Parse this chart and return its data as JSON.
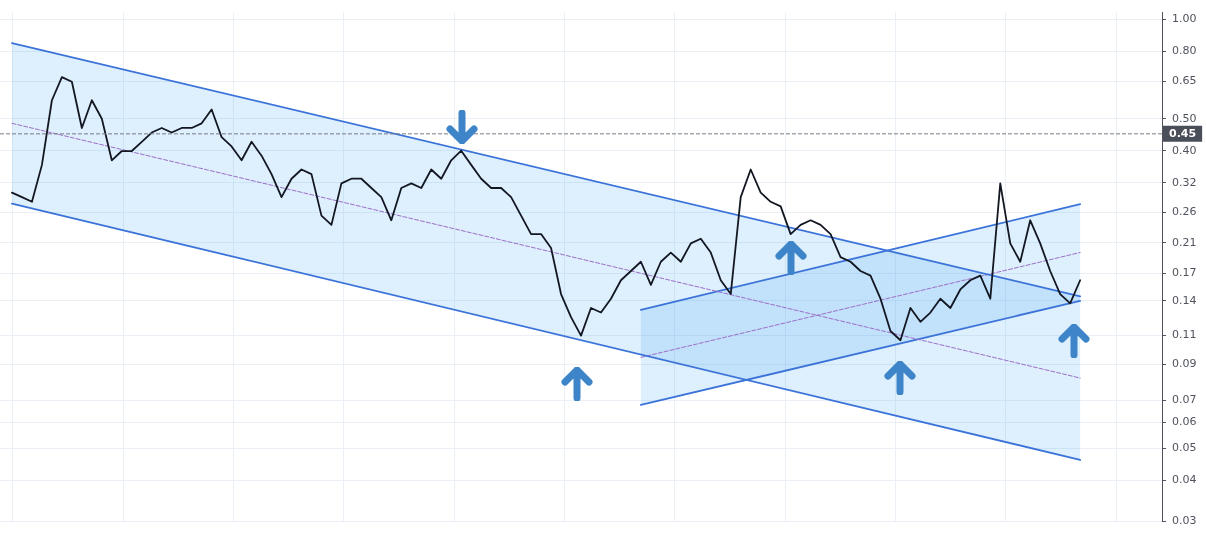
{
  "chart_data": {
    "type": "line",
    "log": "y",
    "grid": true,
    "legend": false,
    "tick_labels": "y",
    "categories": [
      null,
      null,
      null,
      null,
      null,
      null,
      null,
      null,
      null,
      null,
      null,
      null,
      null,
      null,
      null,
      null,
      null,
      null,
      null,
      null,
      null,
      null,
      null,
      null,
      null,
      null,
      null,
      null,
      null,
      null,
      null,
      null,
      null,
      null,
      null,
      null,
      null,
      null,
      null,
      null,
      null,
      null,
      null,
      null,
      null,
      null,
      null,
      null,
      null,
      null,
      null,
      null,
      null,
      null,
      null,
      null,
      null,
      null,
      null,
      null,
      null,
      null,
      null,
      null,
      null,
      null,
      null,
      null,
      null,
      null,
      null,
      null,
      null,
      null,
      null,
      null,
      null,
      null,
      null,
      null,
      null,
      null,
      null,
      null,
      null,
      null,
      null,
      null,
      null,
      null,
      null,
      null,
      null,
      null,
      null,
      null,
      null,
      null,
      null,
      null,
      null,
      null,
      null,
      null,
      null,
      null,
      null,
      null
    ],
    "ylim": [
      0.03,
      1.05
    ],
    "yticks": [
      {
        "value": 1,
        "label": "1.00"
      },
      {
        "value": 0.8,
        "label": "0.80"
      },
      0.65,
      {
        "value": 0.5,
        "label": "0.50"
      },
      {
        "value": 0.4,
        "label": "0.40"
      },
      0.32,
      0.26,
      0.21,
      0.17,
      0.14,
      0.11,
      0.09,
      0.07,
      0.06,
      0.05,
      0.04,
      0.03
    ],
    "ref_lines": [
      {
        "axis": "y",
        "value": 0.45,
        "label": "0.45",
        "color": "#787b86",
        "line_style": "dashed"
      }
    ],
    "series": [
      {
        "line_style": "solid",
        "color": "#131722",
        "values": [
          0.2985,
          0.2891,
          0.2799,
          0.3623,
          0.5691,
          0.6687,
          0.6475,
          0.4689,
          0.5691,
          0.5002,
          0.3741,
          0.3991,
          0.3991,
          0.4257,
          0.4541,
          0.4689,
          0.4541,
          0.4689,
          0.4689,
          0.4844,
          0.5336,
          0.4396,
          0.4122,
          0.3741,
          0.4257,
          0.3864,
          0.3396,
          0.2891,
          0.3289,
          0.3508,
          0.3396,
          0.2541,
          0.2382,
          0.3184,
          0.3289,
          0.3289,
          0.3083,
          0.2891,
          0.246,
          0.3083,
          0.3184,
          0.3083,
          0.3508,
          0.3289,
          0.3741,
          0.4,
          0.3623,
          0.3289,
          0.3083,
          0.3083,
          0.2891,
          0.2541,
          0.2234,
          0.2234,
          0.2028,
          0.1469,
          0.125,
          0.1099,
          0.1333,
          0.1291,
          0.1422,
          0.1618,
          0.1726,
          0.1841,
          0.1567,
          0.1841,
          0.1963,
          0.1841,
          0.2094,
          0.2163,
          0.1963,
          0.1618,
          0.1469,
          0.2891,
          0.3508,
          0.2985,
          0.2799,
          0.271,
          0.2234,
          0.2382,
          0.246,
          0.2382,
          0.2234,
          0.1901,
          0.1841,
          0.1726,
          0.1671,
          0.1422,
          0.1135,
          0.1064,
          0.1333,
          0.121,
          0.1291,
          0.1422,
          0.1333,
          0.1517,
          0.1618,
          0.1671,
          0.1422,
          0.3184,
          0.2094,
          0.1841,
          0.246,
          0.2094,
          0.1726,
          0.1469,
          0.1377,
          0.1618
        ]
      },
      {
        "line_style": "solid",
        "color": "#3b73d9",
        "values": [
          0.8488,
          null,
          null,
          null,
          null,
          null,
          null,
          null,
          null,
          null,
          null,
          null,
          null,
          null,
          null,
          null,
          null,
          null,
          null,
          null,
          null,
          null,
          null,
          null,
          null,
          null,
          null,
          null,
          null,
          null,
          null,
          null,
          null,
          null,
          null,
          null,
          null,
          null,
          null,
          null,
          null,
          null,
          null,
          null,
          null,
          null,
          null,
          null,
          null,
          null,
          null,
          null,
          null,
          null,
          null,
          null,
          null,
          null,
          null,
          null,
          null,
          null,
          null,
          null,
          null,
          null,
          null,
          null,
          null,
          null,
          null,
          null,
          null,
          null,
          null,
          null,
          null,
          null,
          null,
          null,
          null,
          null,
          null,
          null,
          null,
          null,
          null,
          null,
          null,
          null,
          null,
          null,
          null,
          null,
          null,
          null,
          null,
          null,
          null,
          null,
          null,
          null,
          null,
          null,
          null,
          null,
          null,
          0.1446
        ]
      },
      {
        "line_style": "solid",
        "color": "#3b73d9",
        "values": [
          0.2764,
          null,
          null,
          null,
          null,
          null,
          null,
          null,
          null,
          null,
          null,
          null,
          null,
          null,
          null,
          null,
          null,
          null,
          null,
          null,
          null,
          null,
          null,
          null,
          null,
          null,
          null,
          null,
          null,
          null,
          null,
          null,
          null,
          null,
          null,
          null,
          null,
          null,
          null,
          null,
          null,
          null,
          null,
          null,
          null,
          null,
          null,
          null,
          null,
          null,
          null,
          null,
          null,
          null,
          null,
          null,
          null,
          null,
          null,
          null,
          null,
          null,
          null,
          null,
          null,
          null,
          null,
          null,
          null,
          null,
          null,
          null,
          null,
          null,
          null,
          null,
          null,
          null,
          null,
          null,
          null,
          null,
          null,
          null,
          null,
          null,
          null,
          null,
          null,
          null,
          null,
          null,
          null,
          null,
          null,
          null,
          null,
          null,
          null,
          null,
          null,
          null,
          null,
          null,
          null,
          null,
          null,
          0.0461
        ]
      },
      {
        "line_style": "dashed",
        "color": "#9c6fc8",
        "values": [
          0.4844,
          null,
          null,
          null,
          null,
          null,
          null,
          null,
          null,
          null,
          null,
          null,
          null,
          null,
          null,
          null,
          null,
          null,
          null,
          null,
          null,
          null,
          null,
          null,
          null,
          null,
          null,
          null,
          null,
          null,
          null,
          null,
          null,
          null,
          null,
          null,
          null,
          null,
          null,
          null,
          null,
          null,
          null,
          null,
          null,
          null,
          null,
          null,
          null,
          null,
          null,
          null,
          null,
          null,
          null,
          null,
          null,
          null,
          null,
          null,
          null,
          null,
          null,
          null,
          null,
          null,
          null,
          null,
          null,
          null,
          null,
          null,
          null,
          null,
          null,
          null,
          null,
          null,
          null,
          null,
          null,
          null,
          null,
          null,
          null,
          null,
          null,
          null,
          null,
          null,
          null,
          null,
          null,
          null,
          null,
          null,
          null,
          null,
          null,
          null,
          null,
          null,
          null,
          null,
          null,
          null,
          null,
          0.0817
        ],
        "lower": [
          0.2764,
          null,
          null,
          null,
          null,
          null,
          null,
          null,
          null,
          null,
          null,
          null,
          null,
          null,
          null,
          null,
          null,
          null,
          null,
          null,
          null,
          null,
          null,
          null,
          null,
          null,
          null,
          null,
          null,
          null,
          null,
          null,
          null,
          null,
          null,
          null,
          null,
          null,
          null,
          null,
          null,
          null,
          null,
          null,
          null,
          null,
          null,
          null,
          null,
          null,
          null,
          null,
          null,
          null,
          null,
          null,
          null,
          null,
          null,
          null,
          null,
          null,
          null,
          null,
          null,
          null,
          null,
          null,
          null,
          null,
          null,
          null,
          null,
          null,
          null,
          null,
          null,
          null,
          null,
          null,
          null,
          null,
          null,
          null,
          null,
          null,
          null,
          null,
          null,
          null,
          null,
          null,
          null,
          null,
          null,
          null,
          null,
          null,
          null,
          null,
          null,
          null,
          null,
          null,
          null,
          null,
          null,
          0.0461
        ],
        "upper": [
          0.8488,
          null,
          null,
          null,
          null,
          null,
          null,
          null,
          null,
          null,
          null,
          null,
          null,
          null,
          null,
          null,
          null,
          null,
          null,
          null,
          null,
          null,
          null,
          null,
          null,
          null,
          null,
          null,
          null,
          null,
          null,
          null,
          null,
          null,
          null,
          null,
          null,
          null,
          null,
          null,
          null,
          null,
          null,
          null,
          null,
          null,
          null,
          null,
          null,
          null,
          null,
          null,
          null,
          null,
          null,
          null,
          null,
          null,
          null,
          null,
          null,
          null,
          null,
          null,
          null,
          null,
          null,
          null,
          null,
          null,
          null,
          null,
          null,
          null,
          null,
          null,
          null,
          null,
          null,
          null,
          null,
          null,
          null,
          null,
          null,
          null,
          null,
          null,
          null,
          null,
          null,
          null,
          null,
          null,
          null,
          null,
          null,
          null,
          null,
          null,
          null,
          null,
          null,
          null,
          null,
          null,
          null,
          0.1446
        ]
      },
      {
        "line_style": "solid",
        "color": "#3b73d9",
        "values": [
          null,
          null,
          null,
          null,
          null,
          null,
          null,
          null,
          null,
          null,
          null,
          null,
          null,
          null,
          null,
          null,
          null,
          null,
          null,
          null,
          null,
          null,
          null,
          null,
          null,
          null,
          null,
          null,
          null,
          null,
          null,
          null,
          null,
          null,
          null,
          null,
          null,
          null,
          null,
          null,
          null,
          null,
          null,
          null,
          null,
          null,
          null,
          null,
          null,
          null,
          null,
          null,
          null,
          null,
          null,
          null,
          null,
          null,
          null,
          null,
          null,
          null,
          null,
          0.1316,
          null,
          null,
          null,
          null,
          null,
          null,
          null,
          null,
          null,
          null,
          null,
          null,
          null,
          null,
          null,
          null,
          null,
          null,
          null,
          null,
          null,
          null,
          null,
          null,
          null,
          null,
          null,
          null,
          null,
          null,
          null,
          null,
          null,
          null,
          null,
          null,
          null,
          null,
          null,
          null,
          null,
          null,
          null,
          0.2754
        ]
      },
      {
        "line_style": "solid",
        "color": "#3b73d9",
        "values": [
          null,
          null,
          null,
          null,
          null,
          null,
          null,
          null,
          null,
          null,
          null,
          null,
          null,
          null,
          null,
          null,
          null,
          null,
          null,
          null,
          null,
          null,
          null,
          null,
          null,
          null,
          null,
          null,
          null,
          null,
          null,
          null,
          null,
          null,
          null,
          null,
          null,
          null,
          null,
          null,
          null,
          null,
          null,
          null,
          null,
          null,
          null,
          null,
          null,
          null,
          null,
          null,
          null,
          null,
          null,
          null,
          null,
          null,
          null,
          null,
          null,
          null,
          null,
          0.0677,
          null,
          null,
          null,
          null,
          null,
          null,
          null,
          null,
          null,
          null,
          null,
          null,
          null,
          null,
          null,
          null,
          null,
          null,
          null,
          null,
          null,
          null,
          null,
          null,
          null,
          null,
          null,
          null,
          null,
          null,
          null,
          null,
          null,
          null,
          null,
          null,
          null,
          null,
          null,
          null,
          null,
          null,
          null,
          0.1401
        ]
      },
      {
        "line_style": "dashed",
        "color": "#9c6fc8",
        "values": [
          null,
          null,
          null,
          null,
          null,
          null,
          null,
          null,
          null,
          null,
          null,
          null,
          null,
          null,
          null,
          null,
          null,
          null,
          null,
          null,
          null,
          null,
          null,
          null,
          null,
          null,
          null,
          null,
          null,
          null,
          null,
          null,
          null,
          null,
          null,
          null,
          null,
          null,
          null,
          null,
          null,
          null,
          null,
          null,
          null,
          null,
          null,
          null,
          null,
          null,
          null,
          null,
          null,
          null,
          null,
          null,
          null,
          null,
          null,
          null,
          null,
          null,
          null,
          0.0944,
          null,
          null,
          null,
          null,
          null,
          null,
          null,
          null,
          null,
          null,
          null,
          null,
          null,
          null,
          null,
          null,
          null,
          null,
          null,
          null,
          null,
          null,
          null,
          null,
          null,
          null,
          null,
          null,
          null,
          null,
          null,
          null,
          null,
          null,
          null,
          null,
          null,
          null,
          null,
          null,
          null,
          null,
          null,
          0.1964
        ],
        "lower": [
          null,
          null,
          null,
          null,
          null,
          null,
          null,
          null,
          null,
          null,
          null,
          null,
          null,
          null,
          null,
          null,
          null,
          null,
          null,
          null,
          null,
          null,
          null,
          null,
          null,
          null,
          null,
          null,
          null,
          null,
          null,
          null,
          null,
          null,
          null,
          null,
          null,
          null,
          null,
          null,
          null,
          null,
          null,
          null,
          null,
          null,
          null,
          null,
          null,
          null,
          null,
          null,
          null,
          null,
          null,
          null,
          null,
          null,
          null,
          null,
          null,
          null,
          null,
          0.0677,
          null,
          null,
          null,
          null,
          null,
          null,
          null,
          null,
          null,
          null,
          null,
          null,
          null,
          null,
          null,
          null,
          null,
          null,
          null,
          null,
          null,
          null,
          null,
          null,
          null,
          null,
          null,
          null,
          null,
          null,
          null,
          null,
          null,
          null,
          null,
          null,
          null,
          null,
          null,
          null,
          null,
          null,
          null,
          0.1401
        ],
        "upper": [
          null,
          null,
          null,
          null,
          null,
          null,
          null,
          null,
          null,
          null,
          null,
          null,
          null,
          null,
          null,
          null,
          null,
          null,
          null,
          null,
          null,
          null,
          null,
          null,
          null,
          null,
          null,
          null,
          null,
          null,
          null,
          null,
          null,
          null,
          null,
          null,
          null,
          null,
          null,
          null,
          null,
          null,
          null,
          null,
          null,
          null,
          null,
          null,
          null,
          null,
          null,
          null,
          null,
          null,
          null,
          null,
          null,
          null,
          null,
          null,
          null,
          null,
          null,
          0.1316,
          null,
          null,
          null,
          null,
          null,
          null,
          null,
          null,
          null,
          null,
          null,
          null,
          null,
          null,
          null,
          null,
          null,
          null,
          null,
          null,
          null,
          null,
          null,
          null,
          null,
          null,
          null,
          null,
          null,
          null,
          null,
          null,
          null,
          null,
          null,
          null,
          null,
          null,
          null,
          null,
          null,
          null,
          null,
          0.2754
        ]
      }
    ]
  }
}
